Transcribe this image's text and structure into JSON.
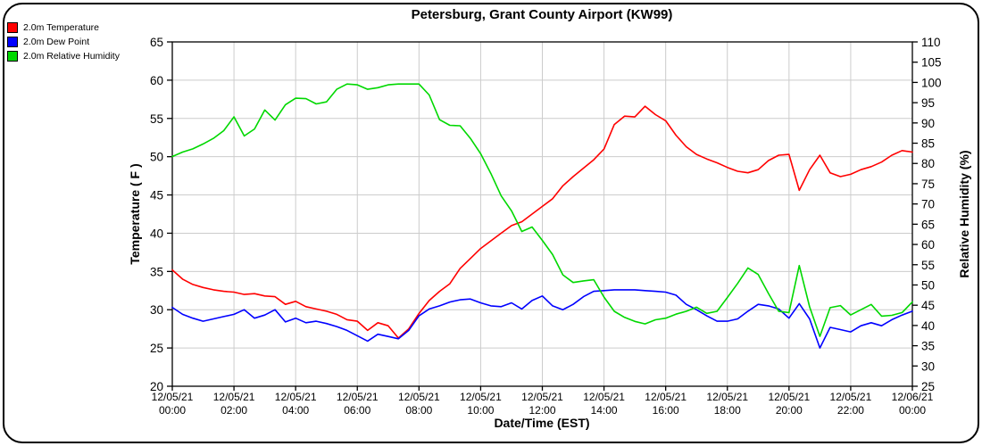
{
  "title": "Petersburg, Grant County Airport (KW99)",
  "legend": {
    "items": [
      {
        "label": "2.0m Temperature",
        "color": "#ff0000"
      },
      {
        "label": "2.0m Dew Point",
        "color": "#0000ff"
      },
      {
        "label": "2.0m Relative Humidity",
        "color": "#00d800"
      }
    ]
  },
  "colors": {
    "grid": "#cccccc",
    "frame": "#000000"
  },
  "chart_data": {
    "type": "line",
    "title": "Petersburg, Grant County Airport (KW99)",
    "xlabel": "Date/Time (EST)",
    "ylabel_left": "Temperature ( F )",
    "ylabel_right": "Relative Humidity (%)",
    "grid": true,
    "legend_position": "top-left",
    "x_start_hour": 0,
    "x_end_hour": 24,
    "x_step_minutes": 20,
    "x_ticks": [
      {
        "hour": 0,
        "date": "12/05/21",
        "time": "00:00"
      },
      {
        "hour": 2,
        "date": "12/05/21",
        "time": "02:00"
      },
      {
        "hour": 4,
        "date": "12/05/21",
        "time": "04:00"
      },
      {
        "hour": 6,
        "date": "12/05/21",
        "time": "06:00"
      },
      {
        "hour": 8,
        "date": "12/05/21",
        "time": "08:00"
      },
      {
        "hour": 10,
        "date": "12/05/21",
        "time": "10:00"
      },
      {
        "hour": 12,
        "date": "12/05/21",
        "time": "12:00"
      },
      {
        "hour": 14,
        "date": "12/05/21",
        "time": "14:00"
      },
      {
        "hour": 16,
        "date": "12/05/21",
        "time": "16:00"
      },
      {
        "hour": 18,
        "date": "12/05/21",
        "time": "18:00"
      },
      {
        "hour": 20,
        "date": "12/05/21",
        "time": "20:00"
      },
      {
        "hour": 22,
        "date": "12/05/21",
        "time": "22:00"
      },
      {
        "hour": 24,
        "date": "12/06/21",
        "time": "00:00"
      }
    ],
    "y_left": {
      "min": 20,
      "max": 65,
      "tick_step": 5
    },
    "y_right": {
      "min": 25,
      "max": 110,
      "tick_step": 5
    },
    "series": [
      {
        "name": "2.0m Temperature",
        "axis": "left",
        "color": "#ff0000",
        "unit": "F",
        "values": [
          35.2,
          34.0,
          33.3,
          32.9,
          32.6,
          32.4,
          32.3,
          32.0,
          32.1,
          31.8,
          31.7,
          30.7,
          31.1,
          30.4,
          30.1,
          29.8,
          29.4,
          28.7,
          28.5,
          27.3,
          28.3,
          27.9,
          26.3,
          27.5,
          29.5,
          31.2,
          32.4,
          33.4,
          35.4,
          36.7,
          38.0,
          39.0,
          40.0,
          41.0,
          41.5,
          42.5,
          43.5,
          44.5,
          46.2,
          47.4,
          48.5,
          49.6,
          51.0,
          54.2,
          55.3,
          55.2,
          56.6,
          55.5,
          54.7,
          52.8,
          51.3,
          50.3,
          49.7,
          49.2,
          48.6,
          48.1,
          47.9,
          48.3,
          49.5,
          50.2,
          50.3,
          45.6,
          48.3,
          50.2,
          47.9,
          47.4,
          47.7,
          48.3,
          48.7,
          49.3,
          50.2,
          50.8,
          50.6
        ]
      },
      {
        "name": "2.0m Dew Point",
        "axis": "left",
        "color": "#0000ff",
        "unit": "F",
        "values": [
          30.3,
          29.4,
          28.9,
          28.5,
          28.8,
          29.1,
          29.4,
          30.0,
          28.9,
          29.3,
          30.0,
          28.4,
          28.9,
          28.3,
          28.5,
          28.2,
          27.8,
          27.3,
          26.6,
          25.9,
          26.8,
          26.5,
          26.2,
          27.3,
          29.2,
          30.1,
          30.5,
          31.0,
          31.3,
          31.4,
          30.9,
          30.5,
          30.4,
          30.9,
          30.1,
          31.2,
          31.8,
          30.5,
          30.0,
          30.7,
          31.7,
          32.4,
          32.5,
          32.6,
          32.6,
          32.6,
          32.5,
          32.4,
          32.3,
          31.9,
          30.7,
          30.0,
          29.2,
          28.5,
          28.5,
          28.8,
          29.8,
          30.7,
          30.5,
          30.1,
          28.9,
          30.8,
          28.8,
          25.0,
          27.7,
          27.4,
          27.1,
          27.9,
          28.3,
          27.9,
          28.7,
          29.3,
          29.8
        ]
      },
      {
        "name": "2.0m Relative Humidity",
        "axis": "right",
        "color": "#00d800",
        "unit": "%",
        "values": [
          81.7,
          82.8,
          83.6,
          84.8,
          86.2,
          88.1,
          91.5,
          86.8,
          88.5,
          93.2,
          90.7,
          94.5,
          96.1,
          96.0,
          94.7,
          95.2,
          98.3,
          99.6,
          99.4,
          98.3,
          98.7,
          99.4,
          99.6,
          99.6,
          99.6,
          96.9,
          90.8,
          89.4,
          89.3,
          86.2,
          82.4,
          77.5,
          72.0,
          68.3,
          63.2,
          64.3,
          61.0,
          57.5,
          52.5,
          50.6,
          51.0,
          51.3,
          47.0,
          43.5,
          42.0,
          41.0,
          40.4,
          41.4,
          41.8,
          42.8,
          43.5,
          44.5,
          43.0,
          43.5,
          46.9,
          50.4,
          54.2,
          52.6,
          47.9,
          43.5,
          43.2,
          54.8,
          44.6,
          37.3,
          44.4,
          44.9,
          42.6,
          43.9,
          45.2,
          42.3,
          42.5,
          43.2,
          45.8
        ]
      }
    ]
  }
}
